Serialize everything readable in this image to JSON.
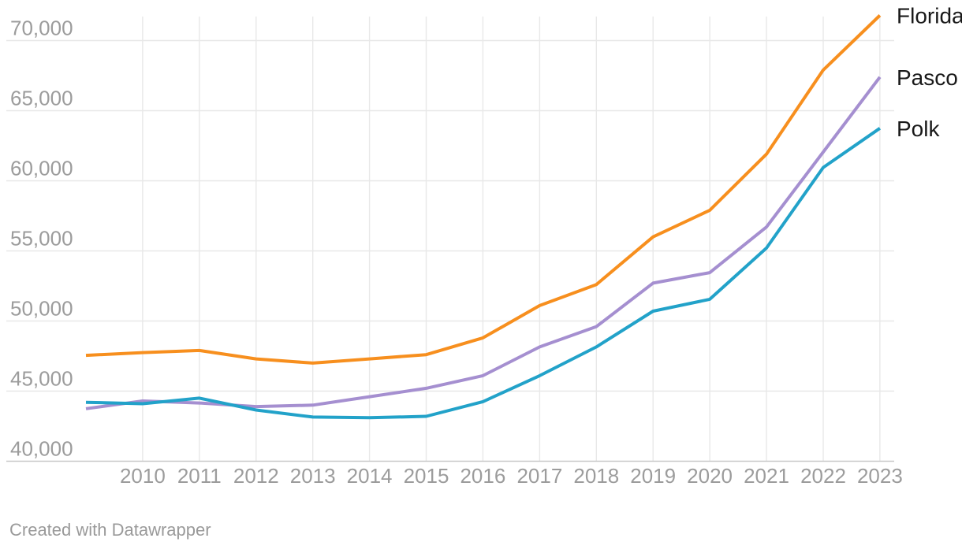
{
  "chart_data": {
    "type": "line",
    "title": "",
    "xlabel": "",
    "ylabel": "",
    "grid": true,
    "legend_position": "line-end-labels",
    "x": [
      2009,
      2010,
      2011,
      2012,
      2013,
      2014,
      2015,
      2016,
      2017,
      2018,
      2019,
      2020,
      2021,
      2022,
      2023
    ],
    "xticks": [
      2010,
      2011,
      2012,
      2013,
      2014,
      2015,
      2016,
      2017,
      2018,
      2019,
      2020,
      2021,
      2022,
      2023
    ],
    "ylim": [
      40000,
      72000
    ],
    "yticks": [
      40000,
      45000,
      50000,
      55000,
      60000,
      65000,
      70000
    ],
    "ytick_labels": [
      "40,000",
      "45,000",
      "50,000",
      "55,000",
      "60,000",
      "65,000",
      "70,000"
    ],
    "series": [
      {
        "name": "Florida",
        "color": "#f78f1e",
        "values": [
          47550,
          47750,
          47900,
          47300,
          47000,
          47300,
          47600,
          48800,
          51100,
          52600,
          56000,
          57900,
          61900,
          67900,
          71800
        ]
      },
      {
        "name": "Pasco",
        "color": "#a58fd0",
        "values": [
          43750,
          44300,
          44150,
          43900,
          44000,
          44600,
          45200,
          46100,
          48150,
          49600,
          52700,
          53450,
          56700,
          62050,
          67400
        ]
      },
      {
        "name": "Polk",
        "color": "#22a2c9",
        "values": [
          44200,
          44100,
          44500,
          43650,
          43150,
          43100,
          43200,
          44250,
          46100,
          48150,
          50700,
          51550,
          55200,
          60950,
          63750
        ]
      }
    ]
  },
  "colors": {
    "grid": "#e8e8e8",
    "baseline": "#c8c8c8",
    "axis_label": "#9c9c9c",
    "series_label": "#191919",
    "footer_text": "#9a9a9a",
    "background": "#ffffff"
  },
  "footer": {
    "attribution": "Created with Datawrapper"
  }
}
